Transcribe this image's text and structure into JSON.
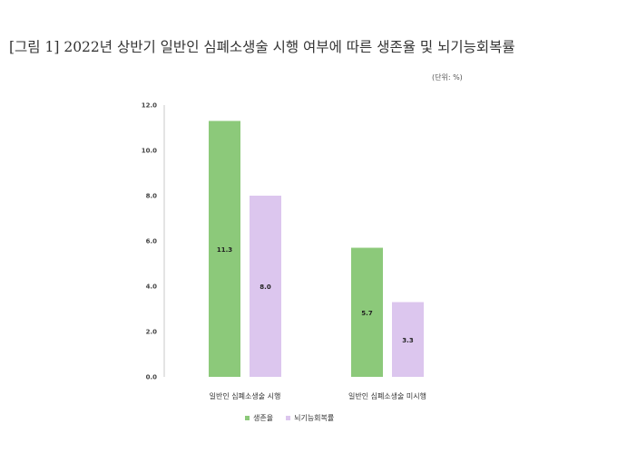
{
  "chart_data": {
    "type": "bar",
    "title": "[그림 1] 2022년 상반기 일반인 심폐소생술 시행 여부에 따른 생존율 및 뇌기능회복률",
    "unit_note": "(단위: %)",
    "categories": [
      "일반인 심폐소생술 시행",
      "일반인 심폐소생술 미시행"
    ],
    "series": [
      {
        "name": "생존율",
        "values": [
          11.3,
          5.7
        ],
        "color": "#8cc97a",
        "labels": [
          "11.3",
          "5.7"
        ]
      },
      {
        "name": "뇌기능회복률",
        "values": [
          8.0,
          3.3
        ],
        "color": "#dcc6ee",
        "labels": [
          "8.0",
          "3.3"
        ]
      }
    ],
    "yticks": [
      "0.0",
      "2.0",
      "4.0",
      "6.0",
      "8.0",
      "10.0",
      "12.0"
    ],
    "ylim": [
      0,
      12
    ],
    "legend_position": "bottom",
    "grid": false
  }
}
